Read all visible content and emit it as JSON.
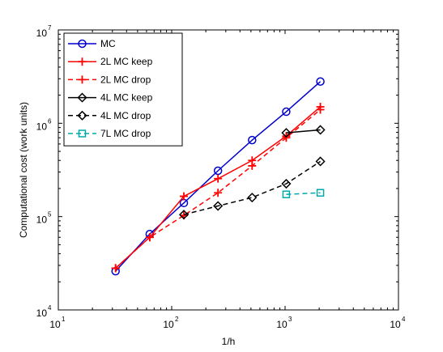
{
  "chart_data": {
    "type": "line",
    "title": "",
    "xlabel": "1/h",
    "ylabel": "Computational cost (work units)",
    "xscale": "log",
    "yscale": "log",
    "xlim": [
      10,
      10000
    ],
    "ylim": [
      10000,
      10000000
    ],
    "grid": false,
    "legend_position": "top-left",
    "x_ticks": [
      {
        "value": 10,
        "base": "10",
        "exp": "1"
      },
      {
        "value": 100,
        "base": "10",
        "exp": "2"
      },
      {
        "value": 1000,
        "base": "10",
        "exp": "3"
      },
      {
        "value": 10000,
        "base": "10",
        "exp": "4"
      }
    ],
    "y_ticks": [
      {
        "value": 10000,
        "base": "10",
        "exp": "4"
      },
      {
        "value": 100000,
        "base": "10",
        "exp": "5"
      },
      {
        "value": 1000000,
        "base": "10",
        "exp": "6"
      },
      {
        "value": 10000000,
        "base": "10",
        "exp": "7"
      }
    ],
    "series": [
      {
        "name": "MC",
        "color": "#0000cc",
        "dash": "solid",
        "marker": "circle",
        "x": [
          32,
          64,
          128,
          256,
          512,
          1024,
          2048
        ],
        "y": [
          26000,
          65000,
          140000,
          310000,
          660000,
          1330000,
          2800000
        ]
      },
      {
        "name": "2L MC keep",
        "color": "#ff0000",
        "dash": "solid",
        "marker": "plus",
        "x": [
          32,
          64,
          128,
          256,
          512,
          1024,
          2048
        ],
        "y": [
          28000,
          60000,
          165000,
          255000,
          400000,
          730000,
          1500000
        ]
      },
      {
        "name": "2L MC drop",
        "color": "#ff0000",
        "dash": "dashed",
        "marker": "plus",
        "x": [
          32,
          64,
          128,
          256,
          512,
          1024,
          2048
        ],
        "y": [
          28000,
          60000,
          103000,
          180000,
          350000,
          700000,
          1400000
        ]
      },
      {
        "name": "4L MC keep",
        "color": "#000000",
        "dash": "solid",
        "marker": "diamond",
        "x": [
          1024,
          2048
        ],
        "y": [
          790000,
          850000
        ]
      },
      {
        "name": "4L MC drop",
        "color": "#000000",
        "dash": "dashed",
        "marker": "diamond",
        "x": [
          128,
          256,
          512,
          1024,
          2048
        ],
        "y": [
          105000,
          130000,
          160000,
          225000,
          390000
        ]
      },
      {
        "name": "7L MC drop",
        "color": "#00aaaa",
        "dash": "dashed",
        "marker": "square",
        "x": [
          1024,
          2048
        ],
        "y": [
          173000,
          180000
        ]
      }
    ]
  }
}
